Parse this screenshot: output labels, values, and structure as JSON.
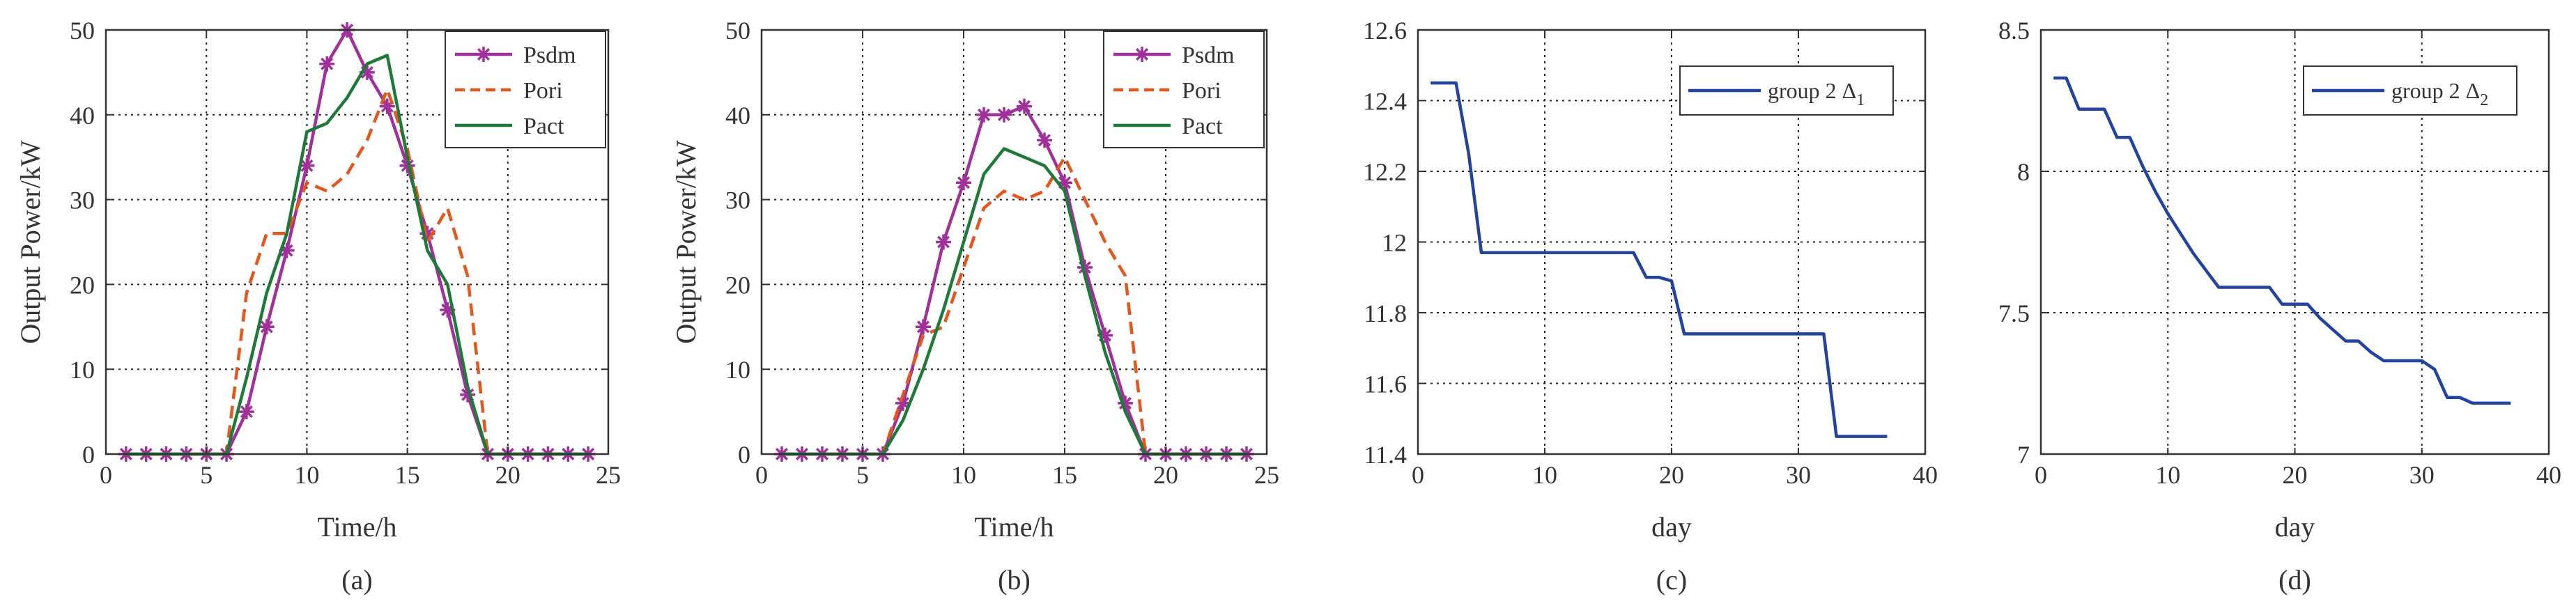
{
  "chart_data": [
    {
      "type": "line",
      "panel_label": "(a)",
      "xlabel": "Time/h",
      "ylabel": "Output Power/kW",
      "xlim": [
        0,
        25
      ],
      "ylim": [
        0,
        50
      ],
      "xticks": [
        0,
        5,
        10,
        15,
        20,
        25
      ],
      "yticks": [
        0,
        10,
        20,
        30,
        40,
        50
      ],
      "grid": true,
      "legend_position": "top-right",
      "series": [
        {
          "name": "Psdm",
          "color": "#a0309a",
          "dash": "solid",
          "marker": "asterisk",
          "x": [
            1,
            2,
            3,
            4,
            5,
            6,
            7,
            8,
            9,
            10,
            11,
            12,
            13,
            14,
            15,
            16,
            17,
            18,
            19,
            20,
            21,
            22,
            23,
            24
          ],
          "y": [
            0,
            0,
            0,
            0,
            0,
            0,
            5,
            15,
            24,
            34,
            46,
            50,
            45,
            41,
            34,
            26,
            17,
            7,
            0,
            0,
            0,
            0,
            0,
            0
          ]
        },
        {
          "name": "Pori",
          "color": "#e2571e",
          "dash": "dashed",
          "marker": "none",
          "x": [
            1,
            2,
            3,
            4,
            5,
            6,
            7,
            8,
            9,
            10,
            11,
            12,
            13,
            14,
            15,
            16,
            17,
            18,
            19,
            20,
            21,
            22,
            23,
            24
          ],
          "y": [
            0,
            0,
            0,
            0,
            0,
            0,
            19,
            26,
            26,
            32,
            31,
            33,
            37,
            43,
            36,
            25,
            29,
            21,
            0,
            0,
            0,
            0,
            0,
            0
          ]
        },
        {
          "name": "Pact",
          "color": "#1f7a3a",
          "dash": "solid",
          "marker": "none",
          "x": [
            1,
            2,
            3,
            4,
            5,
            6,
            7,
            8,
            9,
            10,
            11,
            12,
            13,
            14,
            15,
            16,
            17,
            18,
            19,
            20,
            21,
            22,
            23,
            24
          ],
          "y": [
            0,
            0,
            0,
            0,
            0,
            0,
            9,
            19,
            26,
            38,
            39,
            42,
            46,
            47,
            35,
            24,
            20,
            8,
            0,
            0,
            0,
            0,
            0,
            0
          ]
        }
      ]
    },
    {
      "type": "line",
      "panel_label": "(b)",
      "xlabel": "Time/h",
      "ylabel": "Output Power/kW",
      "xlim": [
        0,
        25
      ],
      "ylim": [
        0,
        50
      ],
      "xticks": [
        0,
        5,
        10,
        15,
        20,
        25
      ],
      "yticks": [
        0,
        10,
        20,
        30,
        40,
        50
      ],
      "grid": true,
      "legend_position": "top-right",
      "series": [
        {
          "name": "Psdm",
          "color": "#a0309a",
          "dash": "solid",
          "marker": "asterisk",
          "x": [
            1,
            2,
            3,
            4,
            5,
            6,
            7,
            8,
            9,
            10,
            11,
            12,
            13,
            14,
            15,
            16,
            17,
            18,
            19,
            20,
            21,
            22,
            23,
            24
          ],
          "y": [
            0,
            0,
            0,
            0,
            0,
            0,
            6,
            15,
            25,
            32,
            40,
            40,
            41,
            37,
            32,
            22,
            14,
            6,
            0,
            0,
            0,
            0,
            0,
            0
          ]
        },
        {
          "name": "Pori",
          "color": "#e2571e",
          "dash": "dashed",
          "marker": "none",
          "x": [
            1,
            2,
            3,
            4,
            5,
            6,
            7,
            8,
            9,
            10,
            11,
            12,
            13,
            14,
            15,
            16,
            17,
            18,
            19,
            20,
            21,
            22,
            23,
            24
          ],
          "y": [
            0,
            0,
            0,
            0,
            0,
            0,
            7,
            14,
            15,
            22,
            29,
            31,
            30,
            31,
            35,
            30,
            25,
            21,
            0,
            0,
            0,
            0,
            0,
            0
          ]
        },
        {
          "name": "Pact",
          "color": "#1f7a3a",
          "dash": "solid",
          "marker": "none",
          "x": [
            1,
            2,
            3,
            4,
            5,
            6,
            7,
            8,
            9,
            10,
            11,
            12,
            13,
            14,
            15,
            16,
            17,
            18,
            19,
            20,
            21,
            22,
            23,
            24
          ],
          "y": [
            0,
            0,
            0,
            0,
            0,
            0,
            4,
            10,
            17,
            25,
            33,
            36,
            35,
            34,
            31,
            21,
            12,
            5,
            0,
            0,
            0,
            0,
            0,
            0
          ]
        }
      ]
    },
    {
      "type": "line",
      "panel_label": "(c)",
      "xlabel": "day",
      "ylabel": "",
      "xlim": [
        0,
        40
      ],
      "ylim": [
        11.4,
        12.6
      ],
      "xticks": [
        0,
        10,
        20,
        30,
        40
      ],
      "yticks": [
        11.4,
        11.6,
        11.8,
        12,
        12.2,
        12.4,
        12.6
      ],
      "grid": true,
      "legend_position": "top-right",
      "series": [
        {
          "name": "group 2 Δ",
          "name_subscript": "1",
          "color": "#2244a0",
          "dash": "solid",
          "marker": "none",
          "x": [
            1,
            2,
            3,
            4,
            5,
            6,
            7,
            8,
            9,
            10,
            11,
            12,
            13,
            14,
            15,
            16,
            17,
            18,
            19,
            20,
            21,
            22,
            23,
            24,
            25,
            26,
            27,
            28,
            29,
            30,
            31,
            32,
            33,
            34,
            35,
            36,
            37
          ],
          "y": [
            12.45,
            12.45,
            12.45,
            12.25,
            11.97,
            11.97,
            11.97,
            11.97,
            11.97,
            11.97,
            11.97,
            11.97,
            11.97,
            11.97,
            11.97,
            11.97,
            11.97,
            11.9,
            11.9,
            11.89,
            11.74,
            11.74,
            11.74,
            11.74,
            11.74,
            11.74,
            11.74,
            11.74,
            11.74,
            11.74,
            11.74,
            11.74,
            11.45,
            11.45,
            11.45,
            11.45,
            11.45
          ]
        }
      ]
    },
    {
      "type": "line",
      "panel_label": "(d)",
      "xlabel": "day",
      "ylabel": "",
      "xlim": [
        0,
        40
      ],
      "ylim": [
        7,
        8.5
      ],
      "xticks": [
        0,
        10,
        20,
        30,
        40
      ],
      "yticks": [
        7,
        7.5,
        8,
        8.5
      ],
      "grid": true,
      "legend_position": "top-right",
      "series": [
        {
          "name": "group 2 Δ",
          "name_subscript": "2",
          "color": "#2244a0",
          "dash": "solid",
          "marker": "none",
          "x": [
            1,
            2,
            3,
            4,
            5,
            6,
            7,
            8,
            9,
            10,
            11,
            12,
            13,
            14,
            15,
            16,
            17,
            18,
            19,
            20,
            21,
            22,
            23,
            24,
            25,
            26,
            27,
            28,
            29,
            30,
            31,
            32,
            33,
            34,
            35,
            36,
            37
          ],
          "y": [
            8.33,
            8.33,
            8.22,
            8.22,
            8.22,
            8.12,
            8.12,
            8.02,
            7.93,
            7.85,
            7.78,
            7.71,
            7.65,
            7.59,
            7.59,
            7.59,
            7.59,
            7.59,
            7.53,
            7.53,
            7.53,
            7.48,
            7.44,
            7.4,
            7.4,
            7.36,
            7.33,
            7.33,
            7.33,
            7.33,
            7.3,
            7.2,
            7.2,
            7.18,
            7.18,
            7.18,
            7.18
          ]
        }
      ]
    }
  ]
}
